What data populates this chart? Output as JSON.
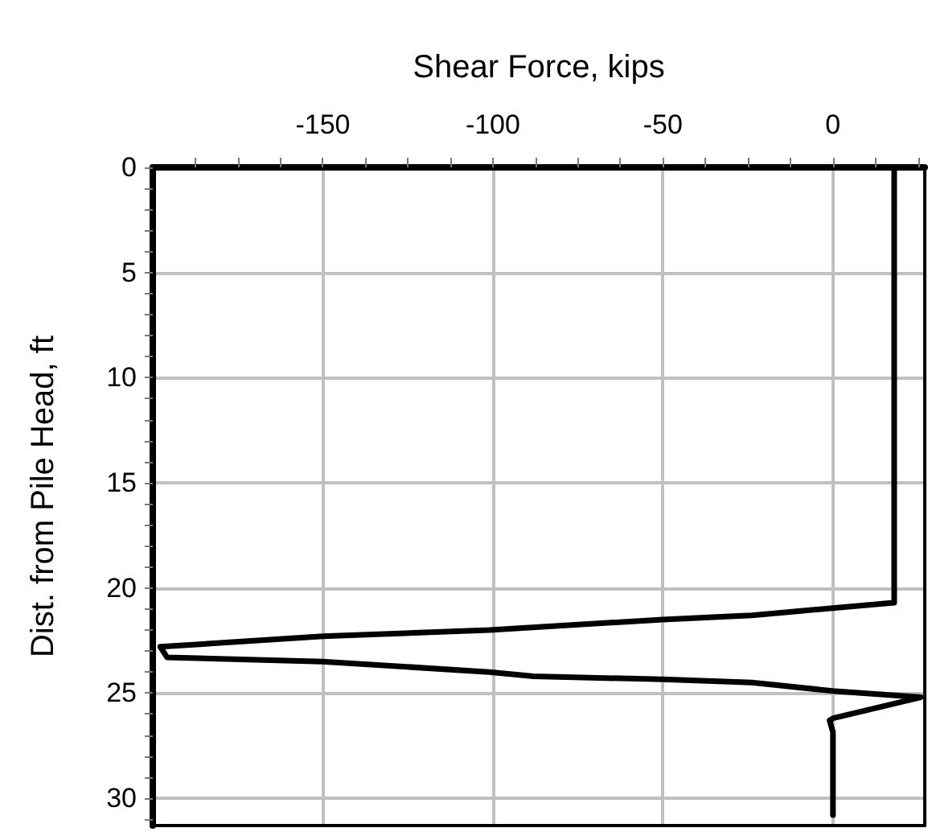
{
  "chart_data": {
    "type": "line",
    "xlabel": "Shear Force, kips",
    "ylabel": "Dist. from Pile Head, ft",
    "xlim": [
      -200,
      27
    ],
    "ylim": [
      31.3,
      0
    ],
    "xticks": [
      {
        "value": -187.5,
        "label": null
      },
      {
        "value": -175,
        "label": null
      },
      {
        "value": -162.5,
        "label": null
      },
      -150,
      {
        "value": -137.5,
        "label": null
      },
      {
        "value": -125,
        "label": null
      },
      {
        "value": -112.5,
        "label": null
      },
      -100,
      {
        "value": -87.5,
        "label": null
      },
      {
        "value": -75,
        "label": null
      },
      {
        "value": -62.5,
        "label": null
      },
      -50,
      {
        "value": -37.5,
        "label": null
      },
      {
        "value": -25,
        "label": null
      },
      {
        "value": -12.5,
        "label": null
      },
      0,
      {
        "value": 12.5,
        "label": null
      },
      {
        "value": 25,
        "label": null
      }
    ],
    "yticks": [
      0,
      {
        "value": 1,
        "label": null
      },
      {
        "value": 2,
        "label": null
      },
      {
        "value": 3,
        "label": null
      },
      {
        "value": 4,
        "label": null
      },
      5,
      {
        "value": 6,
        "label": null
      },
      {
        "value": 7,
        "label": null
      },
      {
        "value": 8,
        "label": null
      },
      {
        "value": 9,
        "label": null
      },
      10,
      {
        "value": 11,
        "label": null
      },
      {
        "value": 12,
        "label": null
      },
      {
        "value": 13,
        "label": null
      },
      {
        "value": 14,
        "label": null
      },
      15,
      {
        "value": 16,
        "label": null
      },
      {
        "value": 17,
        "label": null
      },
      {
        "value": 18,
        "label": null
      },
      {
        "value": 19,
        "label": null
      },
      20,
      {
        "value": 21,
        "label": null
      },
      {
        "value": 22,
        "label": null
      },
      {
        "value": 23,
        "label": null
      },
      {
        "value": 24,
        "label": null
      },
      25,
      {
        "value": 26,
        "label": null
      },
      {
        "value": 27,
        "label": null
      },
      {
        "value": 28,
        "label": null
      },
      {
        "value": 29,
        "label": null
      },
      30,
      {
        "value": 31,
        "label": null
      }
    ],
    "grid": true,
    "marker": "none",
    "line_style": "solid",
    "series": [
      {
        "color": "#000000",
        "x": [
          18,
          18,
          -23.8,
          -50,
          -101,
          -150,
          -197.8,
          -195.8,
          -150,
          -101,
          -88,
          -50,
          -23.8,
          0,
          25.8,
          0,
          -1,
          0,
          0
        ],
        "values": [
          0,
          20.7,
          21.3,
          21.5,
          22.0,
          22.3,
          22.8,
          23.3,
          23.5,
          24.0,
          24.2,
          24.35,
          24.5,
          24.9,
          25.2,
          26.2,
          26.3,
          26.85,
          30.8
        ]
      }
    ]
  }
}
